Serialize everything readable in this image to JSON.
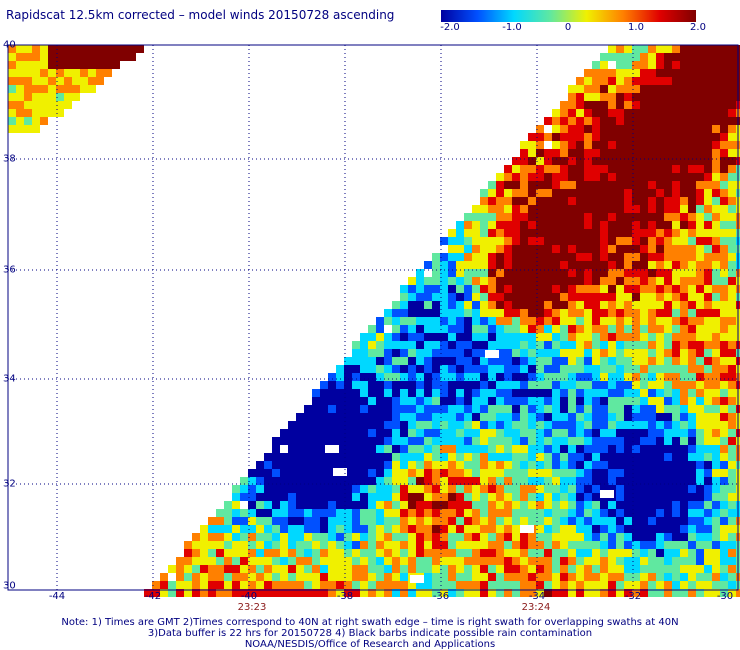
{
  "title": "Rapidscat 12.5km corrected – model winds 20150728 ascending",
  "colorbar": {
    "labels": [
      "-2.0",
      "-1.0",
      "0",
      "1.0",
      "2.0"
    ],
    "stops": [
      "#0000a0",
      "#0050ff",
      "#00d8ff",
      "#60e8a0",
      "#f0f000",
      "#ff8000",
      "#e00000",
      "#800000"
    ]
  },
  "axes": {
    "lon_labels": [
      "-44",
      "-42",
      "-40",
      "-38",
      "-36",
      "-34",
      "-32",
      "-30"
    ],
    "lat_labels": [
      "40",
      "38",
      "36",
      "34",
      "32",
      "30"
    ],
    "lon_range": [
      -45,
      -30
    ],
    "lat_range": [
      30,
      40
    ]
  },
  "time_labels": [
    {
      "lon": -40,
      "text": "23:23"
    },
    {
      "lon": -34,
      "text": "23:24"
    }
  ],
  "notes": [
    "Note: 1) Times are GMT 2)Times correspond to 40N at right swath edge – time is right swath for overlapping swaths at 40N",
    "3)Data buffer is 22 hrs for 20150728 4) Black barbs indicate possible rain contamination",
    "NOAA/NESDIS/Office of Research and Applications"
  ],
  "colors": {
    "text": "#000080",
    "grid": "#000080",
    "time": "#8b1a1a"
  }
}
